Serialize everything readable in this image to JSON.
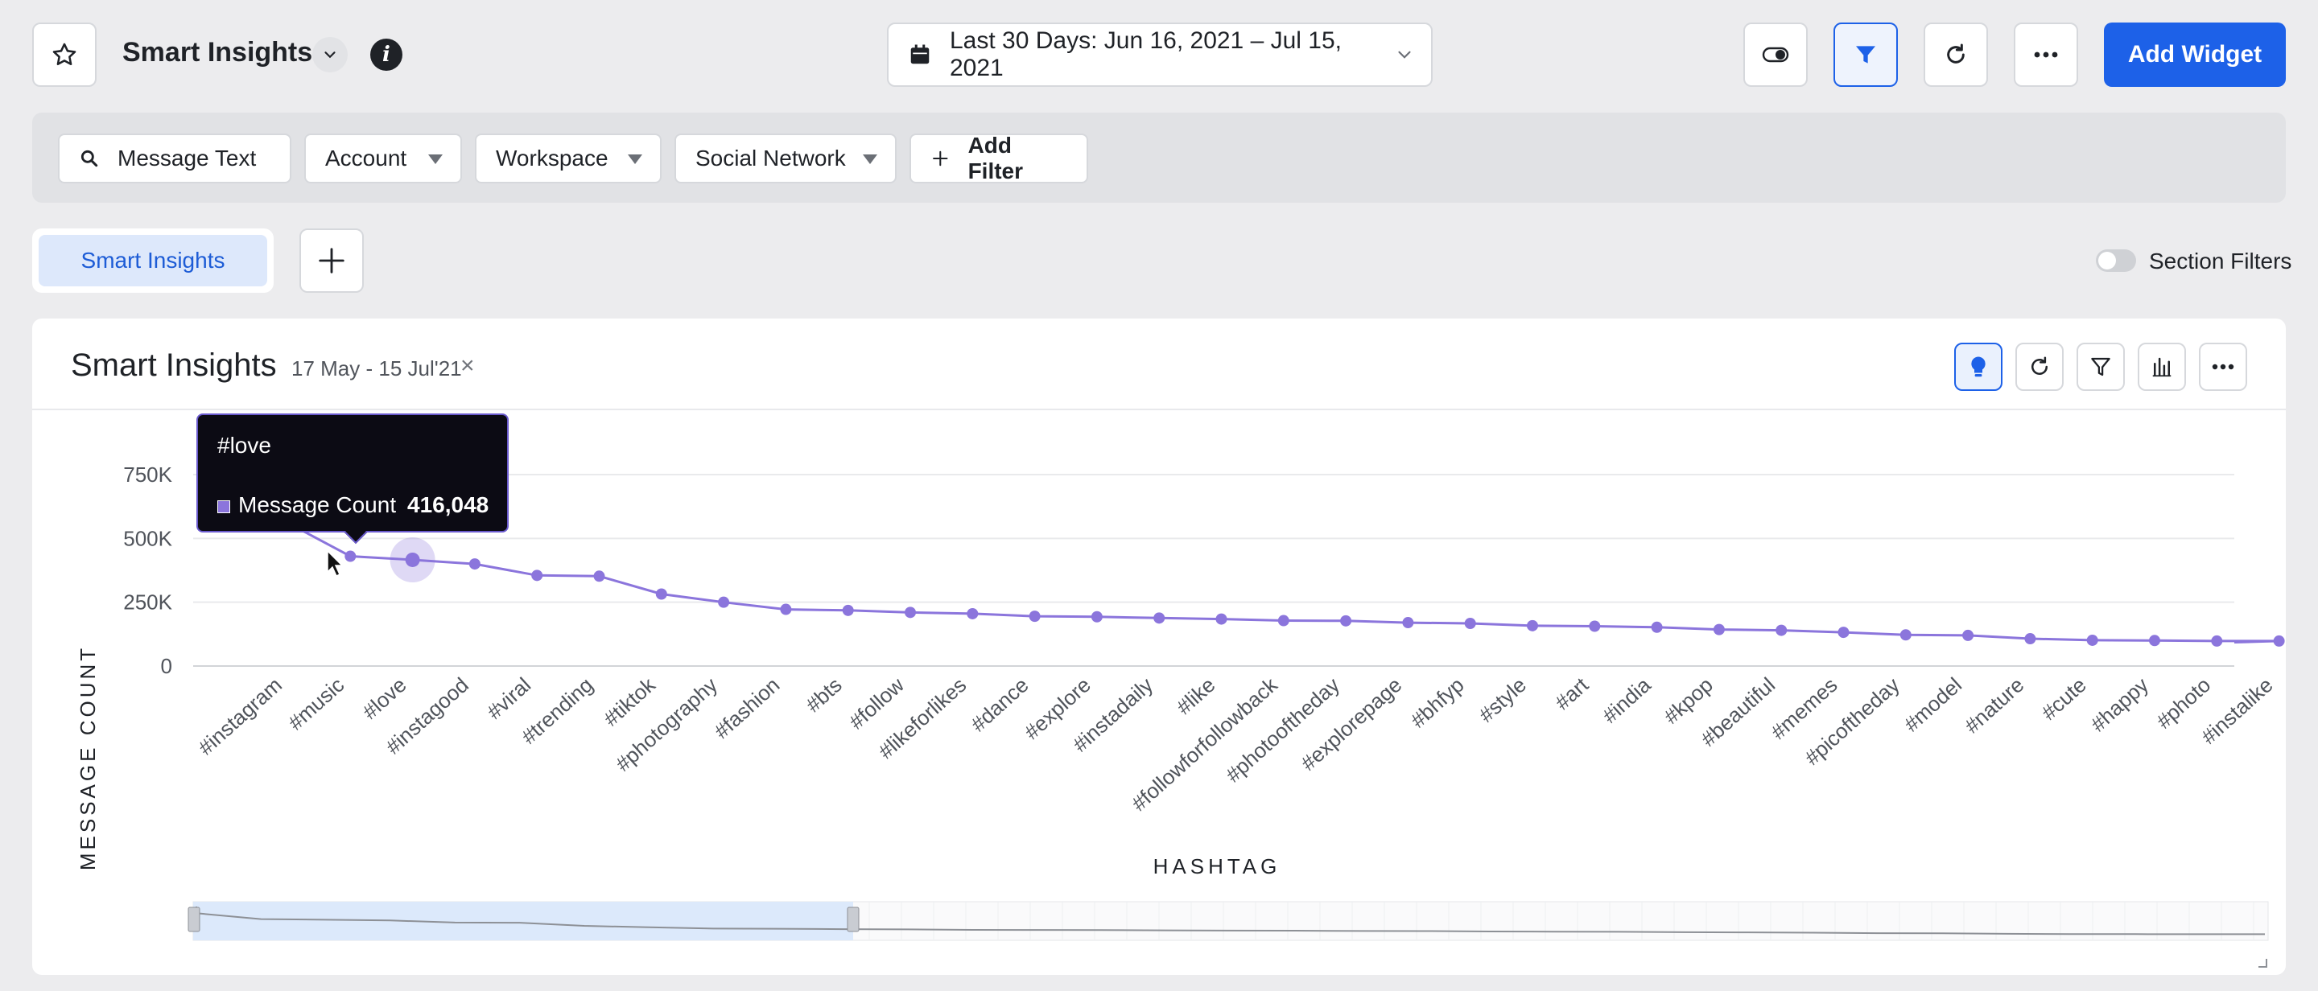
{
  "header": {
    "title": "Smart Insights",
    "date_range": "Last 30 Days: Jun 16, 2021 – Jul 15, 2021",
    "add_widget_label": "Add Widget",
    "accent": "#1d61e8"
  },
  "filters": [
    {
      "label": "Message Text",
      "icon": "search-icon"
    },
    {
      "label": "Account",
      "icon": "caret-down-icon"
    },
    {
      "label": "Workspace",
      "icon": "caret-down-icon"
    },
    {
      "label": "Social Network",
      "icon": "caret-down-icon"
    },
    {
      "label": "Add Filter",
      "icon": "plus-icon"
    }
  ],
  "tabs": {
    "active_label": "Smart Insights",
    "section_filters_label": "Section Filters"
  },
  "widget": {
    "title": "Smart Insights",
    "date_badge": "17 May - 15 Jul'21"
  },
  "tooltip": {
    "title": "#love",
    "series_label": "Message Count",
    "value": "416,048"
  },
  "chart_data": {
    "type": "line",
    "ylabel": "MESSAGE COUNT",
    "xlabel": "HASHTAG",
    "ylim": [
      0,
      750000
    ],
    "y_ticks": [
      "750K",
      "500K",
      "250K",
      "0"
    ],
    "grid": true,
    "line_color": "#8b75dc",
    "categories": [
      "#instagram",
      "#music",
      "#love",
      "#instagood",
      "#viral",
      "#trending",
      "#tiktok",
      "#photography",
      "#fashion",
      "#bts",
      "#follow",
      "#likeforlikes",
      "#dance",
      "#explore",
      "#instadaily",
      "#like",
      "#followforfollowback",
      "#photooftheday",
      "#explorepage",
      "#bhfyp",
      "#style",
      "#art",
      "#india",
      "#kpop",
      "#beautiful",
      "#memes",
      "#picoftheday",
      "#model",
      "#nature",
      "#cute",
      "#happy",
      "#photo",
      "#instalike"
    ],
    "series": [
      {
        "name": "Message Count",
        "values": [
          560000,
          430000,
          416048,
          400000,
          355000,
          352000,
          282000,
          250000,
          222000,
          218000,
          210000,
          205000,
          195000,
          193000,
          188000,
          184000,
          178000,
          177000,
          170000,
          167000,
          158000,
          156000,
          152000,
          143000,
          140000,
          132000,
          122000,
          120000,
          107000,
          101000,
          100000,
          98000,
          98000
        ]
      }
    ]
  }
}
